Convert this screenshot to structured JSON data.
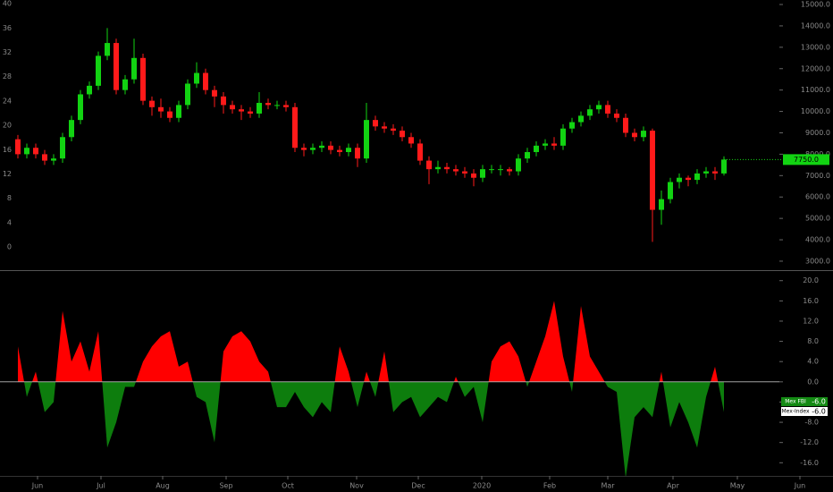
{
  "chart_data": [
    {
      "type": "candlestick",
      "xlim": [
        -2,
        91.2
      ],
      "ylim": [
        2580,
        15210
      ],
      "yticks": [
        {
          "value": 3000,
          "label": "3000.0"
        },
        {
          "value": 4000,
          "label": "4000.0"
        },
        {
          "value": 5000,
          "label": "5000.0"
        },
        {
          "value": 6000,
          "label": "6000.0"
        },
        {
          "value": 7000,
          "label": "7000.0"
        },
        {
          "value": 8000,
          "label": "8000.0"
        },
        {
          "value": 9000,
          "label": "9000.0"
        },
        {
          "value": 10000,
          "label": "10000.0"
        },
        {
          "value": 11000,
          "label": "11000.0"
        },
        {
          "value": 12000,
          "label": "12000.0"
        },
        {
          "value": 13000,
          "label": "13000.0"
        },
        {
          "value": 14000,
          "label": "14000.0"
        },
        {
          "value": 15000,
          "label": "15000.0"
        }
      ],
      "y2lim": [
        -3.8,
        40.6
      ],
      "y2ticks": [
        0,
        4,
        8,
        12,
        16,
        20,
        24,
        28,
        32,
        36,
        40
      ],
      "up_color": "#12d312",
      "down_color": "#ff1a1a",
      "open": [
        8700,
        8000,
        8300,
        8000,
        7700,
        7800,
        8800,
        9600,
        10800,
        11200,
        12600,
        13200,
        11000,
        11500,
        12500,
        10500,
        10200,
        10000,
        9700,
        10300,
        11300,
        11800,
        11000,
        10700,
        10300,
        10100,
        10000,
        9900,
        10400,
        10300,
        10300,
        10200,
        8300,
        8200,
        8300,
        8400,
        8200,
        8100,
        8300,
        7800,
        9600,
        9300,
        9200,
        9100,
        8800,
        8500,
        7700,
        7300,
        7400,
        7300,
        7200,
        7100,
        6900,
        7300,
        7300,
        7300,
        7200,
        7800,
        8100,
        8400,
        8500,
        8400,
        9200,
        9500,
        9800,
        10100,
        10300,
        9900,
        9700,
        9000,
        8800,
        9100,
        5400,
        5900,
        6700,
        6900,
        6800,
        7100,
        7200,
        7100
      ],
      "high": [
        8900,
        8500,
        8500,
        8200,
        8000,
        9000,
        9800,
        11000,
        11400,
        12800,
        13900,
        13400,
        11700,
        13400,
        12700,
        10700,
        10600,
        10200,
        10500,
        11500,
        12300,
        12000,
        11200,
        10900,
        10500,
        10300,
        10200,
        10900,
        10600,
        10500,
        10500,
        10400,
        8500,
        8500,
        8600,
        8600,
        8400,
        8500,
        8500,
        10400,
        9800,
        9500,
        9400,
        9300,
        9000,
        8700,
        7900,
        7700,
        7600,
        7500,
        7400,
        7300,
        7500,
        7500,
        7500,
        7400,
        8000,
        8300,
        8600,
        8700,
        8800,
        9400,
        9700,
        10000,
        10300,
        10500,
        10500,
        10100,
        9900,
        9200,
        9300,
        9200,
        6300,
        6900,
        7100,
        7000,
        7300,
        7400,
        7400,
        7900
      ],
      "low": [
        7800,
        7800,
        7800,
        7500,
        7500,
        7600,
        8600,
        9400,
        10600,
        11000,
        12400,
        10800,
        10800,
        11300,
        10300,
        9800,
        9700,
        9500,
        9500,
        10100,
        11100,
        10800,
        10200,
        9900,
        9900,
        9600,
        9700,
        9700,
        10100,
        10100,
        10000,
        8100,
        7900,
        8000,
        8100,
        8000,
        7900,
        7900,
        7400,
        7600,
        9100,
        9000,
        8900,
        8600,
        8300,
        7500,
        6600,
        7100,
        7100,
        7000,
        6900,
        6500,
        6700,
        7100,
        7000,
        7000,
        7000,
        7600,
        7900,
        8200,
        8200,
        8200,
        9000,
        9300,
        9600,
        9900,
        9700,
        9500,
        8800,
        8600,
        8600,
        3900,
        4700,
        5700,
        6400,
        6500,
        6600,
        6900,
        6800,
        7000
      ],
      "close": [
        8000,
        8300,
        8000,
        7700,
        7800,
        8800,
        9600,
        10800,
        11200,
        12600,
        13200,
        11000,
        11500,
        12500,
        10500,
        10200,
        10000,
        9700,
        10300,
        11300,
        11800,
        11000,
        10700,
        10300,
        10100,
        10000,
        9900,
        10400,
        10300,
        10300,
        10200,
        8300,
        8200,
        8300,
        8400,
        8200,
        8100,
        8300,
        7800,
        9600,
        9300,
        9200,
        9100,
        8800,
        8500,
        7700,
        7300,
        7400,
        7300,
        7200,
        7100,
        6900,
        7300,
        7300,
        7300,
        7200,
        7800,
        8100,
        8400,
        8500,
        8400,
        9200,
        9500,
        9800,
        10100,
        10300,
        9900,
        9700,
        9000,
        8800,
        9100,
        5400,
        5900,
        6700,
        6900,
        6800,
        7100,
        7200,
        7100,
        7750
      ],
      "last_value_label": "7750.0"
    },
    {
      "type": "area",
      "xlim": [
        -2,
        91.2
      ],
      "xticks": [
        {
          "value": 2.2,
          "label": "Jun"
        },
        {
          "value": 9.3,
          "label": "Jul"
        },
        {
          "value": 16.2,
          "label": "Aug"
        },
        {
          "value": 23.3,
          "label": "Sep"
        },
        {
          "value": 30.2,
          "label": "Oct"
        },
        {
          "value": 37.9,
          "label": "Nov"
        },
        {
          "value": 44.8,
          "label": "Dec"
        },
        {
          "value": 51.9,
          "label": "2020"
        },
        {
          "value": 59.5,
          "label": "Feb"
        },
        {
          "value": 66,
          "label": "Mar"
        },
        {
          "value": 73.3,
          "label": "Apr"
        },
        {
          "value": 80.5,
          "label": "May"
        },
        {
          "value": 87.5,
          "label": "Jun"
        }
      ],
      "ylim": [
        -18.6,
        21.9
      ],
      "yticks": [
        {
          "value": 20,
          "label": "20.0"
        },
        {
          "value": 16,
          "label": "16.0"
        },
        {
          "value": 12,
          "label": "12.0"
        },
        {
          "value": 8,
          "label": "8.0"
        },
        {
          "value": 4,
          "label": "4.0"
        },
        {
          "value": 0,
          "label": "0.0"
        },
        {
          "value": -4,
          "label": "-4.0"
        },
        {
          "value": -8,
          "label": "-8.0"
        },
        {
          "value": -12,
          "label": "-12.0"
        },
        {
          "value": -16,
          "label": "-16.0"
        }
      ],
      "series": [
        {
          "name": "Mex FBI",
          "color_up": "#ff0000",
          "color_down": "#0d7d0d",
          "values": [
            7,
            -3,
            2,
            -6,
            -4,
            14,
            4,
            8,
            2,
            10,
            -13,
            -8,
            -1,
            -1,
            4,
            7,
            9,
            10,
            3,
            4,
            -3,
            -4,
            -12,
            6,
            9,
            10,
            8,
            4,
            2,
            -5,
            -5,
            -2,
            -5,
            -7,
            -4,
            -6,
            7,
            2,
            -5,
            2,
            -3,
            6,
            -6,
            -4,
            -3,
            -7,
            -5,
            -3,
            -4,
            1,
            -3,
            -1,
            -8,
            4,
            7,
            8,
            5,
            -1,
            4,
            9,
            16,
            5,
            -2,
            15,
            5,
            2,
            -1,
            -2,
            -19,
            -7,
            -5,
            -7,
            2,
            -9,
            -4,
            -8,
            -13,
            -3,
            3,
            -6
          ]
        }
      ],
      "value_tags": [
        {
          "name": "Mex FBI",
          "label": "-6.0",
          "color": "#138a13"
        },
        {
          "name": "Mex-Index",
          "label": "-6.0",
          "color": "#ffffff"
        }
      ]
    }
  ]
}
